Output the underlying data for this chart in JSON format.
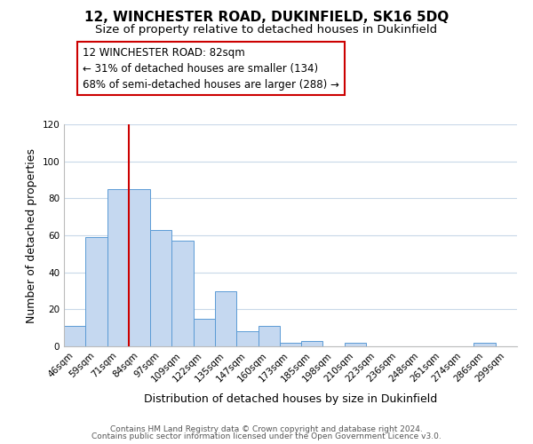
{
  "title": "12, WINCHESTER ROAD, DUKINFIELD, SK16 5DQ",
  "subtitle": "Size of property relative to detached houses in Dukinfield",
  "xlabel": "Distribution of detached houses by size in Dukinfield",
  "ylabel": "Number of detached properties",
  "bar_labels": [
    "46sqm",
    "59sqm",
    "71sqm",
    "84sqm",
    "97sqm",
    "109sqm",
    "122sqm",
    "135sqm",
    "147sqm",
    "160sqm",
    "173sqm",
    "185sqm",
    "198sqm",
    "210sqm",
    "223sqm",
    "236sqm",
    "248sqm",
    "261sqm",
    "274sqm",
    "286sqm",
    "299sqm"
  ],
  "bar_values": [
    11,
    59,
    85,
    85,
    63,
    57,
    15,
    30,
    8,
    11,
    2,
    3,
    0,
    2,
    0,
    0,
    0,
    0,
    0,
    2,
    0
  ],
  "bar_color": "#c5d8f0",
  "bar_edge_color": "#5b9bd5",
  "ylim": [
    0,
    120
  ],
  "yticks": [
    0,
    20,
    40,
    60,
    80,
    100,
    120
  ],
  "vline_x": 2.5,
  "vline_color": "#cc0000",
  "annotation_title": "12 WINCHESTER ROAD: 82sqm",
  "annotation_line1": "← 31% of detached houses are smaller (134)",
  "annotation_line2": "68% of semi-detached houses are larger (288) →",
  "annotation_box_color": "#ffffff",
  "annotation_box_edge": "#cc0000",
  "footer1": "Contains HM Land Registry data © Crown copyright and database right 2024.",
  "footer2": "Contains public sector information licensed under the Open Government Licence v3.0.",
  "background_color": "#ffffff",
  "grid_color": "#c8d8e8",
  "title_fontsize": 11,
  "subtitle_fontsize": 9.5,
  "axis_label_fontsize": 9,
  "tick_fontsize": 7.5,
  "annotation_fontsize": 8.5,
  "footer_fontsize": 6.5
}
